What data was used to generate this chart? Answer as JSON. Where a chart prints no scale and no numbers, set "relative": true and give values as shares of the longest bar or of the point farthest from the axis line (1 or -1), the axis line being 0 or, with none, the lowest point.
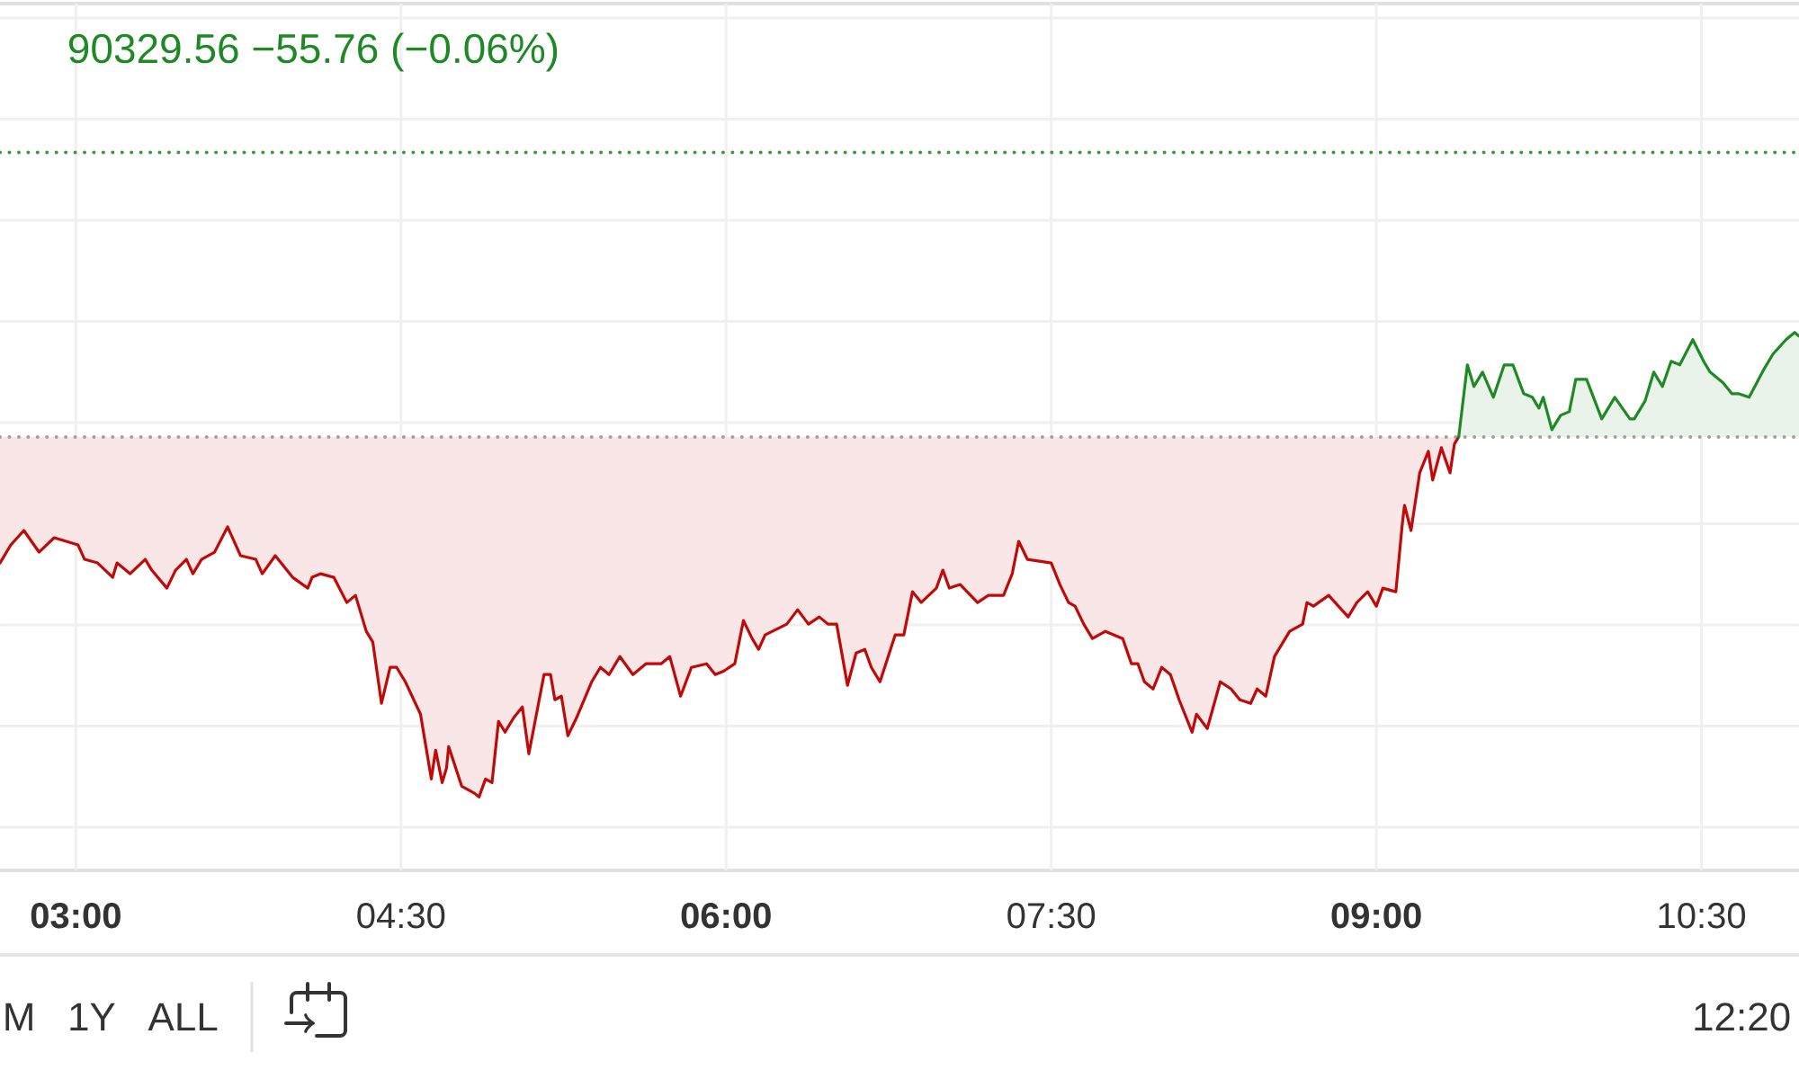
{
  "chart_data": {
    "type": "area",
    "title": "90329.56 −55.76 (−0.06%)",
    "relative": true,
    "grid": true,
    "xlim": [
      2.65,
      10.95
    ],
    "xticks": [
      {
        "value": 3,
        "label": "03:00"
      },
      {
        "value": 4.5,
        "label": "04:30"
      },
      {
        "value": 6,
        "label": "06:00"
      },
      {
        "value": 7.5,
        "label": "07:30"
      },
      {
        "value": 9,
        "label": "09:00"
      },
      {
        "value": 10.5,
        "label": "10:30"
      }
    ],
    "series": [
      {
        "color": "#c00a0a",
        "x": [
          2.65,
          2.7,
          2.76,
          2.83,
          2.9,
          3.01,
          3.04,
          3.1,
          3.17,
          3.19,
          3.25,
          3.32,
          3.35,
          3.42,
          3.46,
          3.51,
          3.54,
          3.58,
          3.64,
          3.7,
          3.76,
          3.83,
          3.86,
          3.92,
          4.0,
          4.07,
          4.09,
          4.13,
          4.19,
          4.25,
          4.29,
          4.34,
          4.37,
          4.41,
          4.45,
          4.48,
          4.52,
          4.59,
          4.64,
          4.66,
          4.69,
          4.71,
          4.72,
          4.78,
          4.84,
          4.86,
          4.89,
          4.92,
          4.95,
          4.98,
          5.02,
          5.06,
          5.09,
          5.16,
          5.19,
          5.21,
          5.24,
          5.27,
          5.31,
          5.38,
          5.42,
          5.46,
          5.51,
          5.57,
          5.63,
          5.7,
          5.74,
          5.79,
          5.84,
          5.91,
          5.95,
          5.99,
          6.04,
          6.08,
          6.12,
          6.15,
          6.18,
          6.28,
          6.33,
          6.38,
          6.43,
          6.47,
          6.51,
          6.56,
          6.6,
          6.64,
          6.67,
          6.71,
          6.78,
          6.82,
          6.86,
          6.9,
          6.97,
          7.0,
          7.03,
          7.08,
          7.16,
          7.21,
          7.28,
          7.32,
          7.35,
          7.39,
          7.5,
          7.54,
          7.58,
          7.61,
          7.65,
          7.69,
          7.75,
          7.83,
          7.87,
          7.9,
          7.93,
          7.97,
          8.01,
          8.05,
          8.09,
          8.15,
          8.17,
          8.22,
          8.28,
          8.33,
          8.37,
          8.42,
          8.45,
          8.49,
          8.53,
          8.6,
          8.66,
          8.68,
          8.71,
          8.78,
          8.87,
          8.91,
          8.96,
          9.0,
          9.03,
          9.09,
          9.12,
          9.13,
          9.16,
          9.2,
          9.24,
          9.26,
          9.3,
          9.34,
          9.36,
          9.38
        ],
        "values": [
          -0.35,
          -0.3,
          -0.26,
          -0.32,
          -0.28,
          -0.3,
          -0.34,
          -0.35,
          -0.39,
          -0.35,
          -0.38,
          -0.34,
          -0.37,
          -0.42,
          -0.37,
          -0.34,
          -0.38,
          -0.34,
          -0.32,
          -0.25,
          -0.33,
          -0.34,
          -0.38,
          -0.33,
          -0.39,
          -0.42,
          -0.39,
          -0.38,
          -0.39,
          -0.46,
          -0.44,
          -0.54,
          -0.57,
          -0.74,
          -0.64,
          -0.64,
          -0.68,
          -0.77,
          -0.95,
          -0.87,
          -0.96,
          -0.92,
          -0.86,
          -0.97,
          -0.99,
          -1.0,
          -0.95,
          -0.96,
          -0.79,
          -0.82,
          -0.78,
          -0.75,
          -0.88,
          -0.66,
          -0.66,
          -0.73,
          -0.72,
          -0.83,
          -0.78,
          -0.68,
          -0.64,
          -0.66,
          -0.61,
          -0.66,
          -0.63,
          -0.63,
          -0.61,
          -0.72,
          -0.64,
          -0.63,
          -0.66,
          -0.65,
          -0.63,
          -0.51,
          -0.56,
          -0.59,
          -0.55,
          -0.52,
          -0.48,
          -0.52,
          -0.5,
          -0.52,
          -0.52,
          -0.69,
          -0.6,
          -0.59,
          -0.64,
          -0.68,
          -0.55,
          -0.55,
          -0.43,
          -0.46,
          -0.42,
          -0.37,
          -0.42,
          -0.41,
          -0.46,
          -0.44,
          -0.44,
          -0.38,
          -0.29,
          -0.34,
          -0.35,
          -0.41,
          -0.46,
          -0.47,
          -0.52,
          -0.56,
          -0.54,
          -0.56,
          -0.63,
          -0.63,
          -0.68,
          -0.7,
          -0.64,
          -0.66,
          -0.73,
          -0.82,
          -0.77,
          -0.81,
          -0.68,
          -0.7,
          -0.73,
          -0.74,
          -0.7,
          -0.72,
          -0.61,
          -0.54,
          -0.52,
          -0.46,
          -0.47,
          -0.44,
          -0.5,
          -0.46,
          -0.43,
          -0.47,
          -0.42,
          -0.43,
          -0.24,
          -0.19,
          -0.26,
          -0.1,
          -0.04,
          -0.12,
          -0.03,
          -0.1,
          -0.02,
          0.0
        ]
      },
      {
        "color": "#1f8a25",
        "x": [
          9.38,
          9.39,
          9.42,
          9.45,
          9.49,
          9.54,
          9.59,
          9.63,
          9.68,
          9.72,
          9.75,
          9.77,
          9.81,
          9.85,
          9.89,
          9.92,
          9.97,
          10.04,
          10.1,
          10.17,
          10.19,
          10.24,
          10.28,
          10.32,
          10.36,
          10.4,
          10.46,
          10.51,
          10.54,
          10.6,
          10.64,
          10.67,
          10.72,
          10.79,
          10.83,
          10.89,
          10.93,
          10.95
        ],
        "values": [
          0.0,
          0.05,
          0.2,
          0.14,
          0.18,
          0.11,
          0.2,
          0.2,
          0.12,
          0.11,
          0.08,
          0.11,
          0.02,
          0.06,
          0.07,
          0.16,
          0.16,
          0.05,
          0.11,
          0.05,
          0.05,
          0.1,
          0.18,
          0.14,
          0.21,
          0.2,
          0.27,
          0.21,
          0.18,
          0.15,
          0.12,
          0.12,
          0.11,
          0.19,
          0.23,
          0.27,
          0.29,
          0.28
        ]
      }
    ],
    "ref_lines": [
      {
        "axis": "y",
        "value": 0,
        "color": "#a0a0a0",
        "line_style": "dotted"
      },
      {
        "axis": "y",
        "value": 0.79,
        "color": "#3c9a3c",
        "line_style": "dotted"
      }
    ],
    "annotations": [
      "M",
      "1Y",
      "ALL",
      "12:20"
    ]
  }
}
